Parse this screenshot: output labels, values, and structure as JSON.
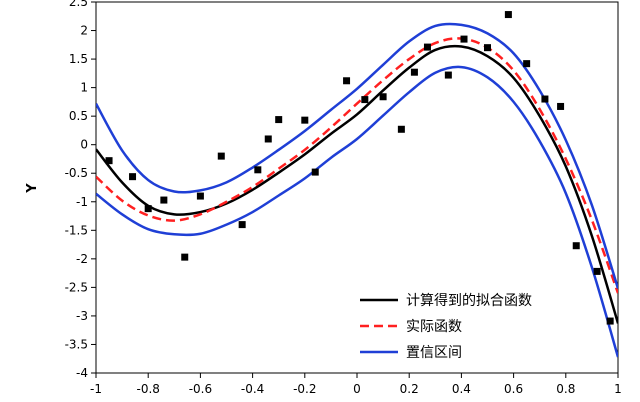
{
  "chart_data": {
    "type": "line",
    "title": "",
    "xlabel": "",
    "ylabel": "Y",
    "xlim": [
      -1,
      1
    ],
    "ylim": [
      -4,
      2.5
    ],
    "xticks": [
      -1,
      -0.8,
      -0.6,
      -0.4,
      -0.2,
      0,
      0.2,
      0.4,
      0.6,
      0.8,
      1
    ],
    "xtick_labels": [
      "-1",
      "-0.8",
      "-0.6",
      "-0.4",
      "-0.2",
      "0",
      "0.2",
      "0.4",
      "0.6",
      "0.8",
      "1"
    ],
    "yticks": [
      -4,
      -3.5,
      -3,
      -2.5,
      -2,
      -1.5,
      -1,
      -0.5,
      0,
      0.5,
      1,
      1.5,
      2,
      2.5
    ],
    "ytick_labels": [
      "-4",
      "-3.5",
      "-3",
      "-2.5",
      "-2",
      "-1.5",
      "-1",
      "-0.5",
      "0",
      "0.5",
      "1",
      "1.5",
      "2",
      "2.5"
    ],
    "grid": false,
    "legend_position": "bottom-right",
    "legend": [
      {
        "label": "计算得到的拟合函数",
        "color": "#000000",
        "style": "solid"
      },
      {
        "label": "实际函数",
        "color": "#ff2020",
        "style": "dashed"
      },
      {
        "label": "置信区间",
        "color": "#1f3fd6",
        "style": "solid"
      }
    ],
    "scatter": {
      "name": "",
      "color": "#000000",
      "x": [
        -0.95,
        -0.86,
        -0.8,
        -0.74,
        -0.66,
        -0.6,
        -0.52,
        -0.44,
        -0.38,
        -0.34,
        -0.3,
        -0.2,
        -0.16,
        -0.04,
        0.03,
        0.1,
        0.17,
        0.22,
        0.27,
        0.35,
        0.41,
        0.5,
        0.58,
        0.65,
        0.72,
        0.78,
        0.84,
        0.92,
        0.97
      ],
      "y": [
        -0.28,
        -0.56,
        -1.12,
        -0.97,
        -1.97,
        -0.9,
        -0.2,
        -1.4,
        -0.44,
        0.1,
        0.44,
        0.43,
        -0.48,
        1.12,
        0.79,
        0.84,
        0.27,
        1.27,
        1.71,
        1.22,
        1.85,
        1.7,
        2.28,
        1.42,
        0.8,
        0.67,
        -1.77,
        -2.22,
        -3.09
      ]
    },
    "series": [
      {
        "name": "计算得到的拟合函数",
        "color": "#000000",
        "style": "solid",
        "x": [
          -1,
          -0.9,
          -0.8,
          -0.7,
          -0.6,
          -0.5,
          -0.4,
          -0.3,
          -0.2,
          -0.1,
          0,
          0.1,
          0.2,
          0.3,
          0.4,
          0.5,
          0.6,
          0.7,
          0.8,
          0.9,
          1
        ],
        "y": [
          -0.08,
          -0.66,
          -1.07,
          -1.22,
          -1.18,
          -1.03,
          -0.79,
          -0.49,
          -0.17,
          0.19,
          0.53,
          0.95,
          1.35,
          1.66,
          1.72,
          1.55,
          1.17,
          0.5,
          -0.38,
          -1.6,
          -3.13
        ]
      },
      {
        "name": "实际函数",
        "color": "#ff2020",
        "style": "dashed",
        "x": [
          -1,
          -0.9,
          -0.8,
          -0.7,
          -0.6,
          -0.5,
          -0.4,
          -0.3,
          -0.2,
          -0.1,
          0,
          0.1,
          0.2,
          0.3,
          0.4,
          0.5,
          0.6,
          0.7,
          0.8,
          0.9,
          1
        ],
        "y": [
          -0.56,
          -0.98,
          -1.24,
          -1.33,
          -1.22,
          -1.0,
          -0.74,
          -0.42,
          -0.09,
          0.3,
          0.72,
          1.13,
          1.5,
          1.78,
          1.86,
          1.7,
          1.3,
          0.62,
          -0.25,
          -1.32,
          -2.6
        ]
      },
      {
        "name": "置信区间 (上)",
        "color": "#1f3fd6",
        "style": "solid",
        "x": [
          -1,
          -0.9,
          -0.8,
          -0.7,
          -0.6,
          -0.5,
          -0.4,
          -0.3,
          -0.2,
          -0.1,
          0,
          0.1,
          0.2,
          0.3,
          0.4,
          0.5,
          0.6,
          0.7,
          0.8,
          0.9,
          1
        ],
        "y": [
          0.72,
          -0.1,
          -0.62,
          -0.82,
          -0.8,
          -0.66,
          -0.4,
          -0.09,
          0.24,
          0.61,
          0.98,
          1.4,
          1.81,
          2.08,
          2.1,
          1.95,
          1.6,
          0.95,
          0.08,
          -1.06,
          -2.52
        ]
      },
      {
        "name": "置信区间 (下)",
        "color": "#1f3fd6",
        "style": "solid",
        "x": [
          -1,
          -0.9,
          -0.8,
          -0.7,
          -0.6,
          -0.5,
          -0.4,
          -0.3,
          -0.2,
          -0.1,
          0,
          0.1,
          0.2,
          0.3,
          0.4,
          0.5,
          0.6,
          0.7,
          0.8,
          0.9,
          1
        ],
        "y": [
          -0.86,
          -1.22,
          -1.48,
          -1.57,
          -1.56,
          -1.4,
          -1.18,
          -0.89,
          -0.59,
          -0.23,
          0.1,
          0.51,
          0.92,
          1.26,
          1.36,
          1.18,
          0.75,
          0.06,
          -0.85,
          -2.15,
          -3.72
        ]
      }
    ]
  }
}
